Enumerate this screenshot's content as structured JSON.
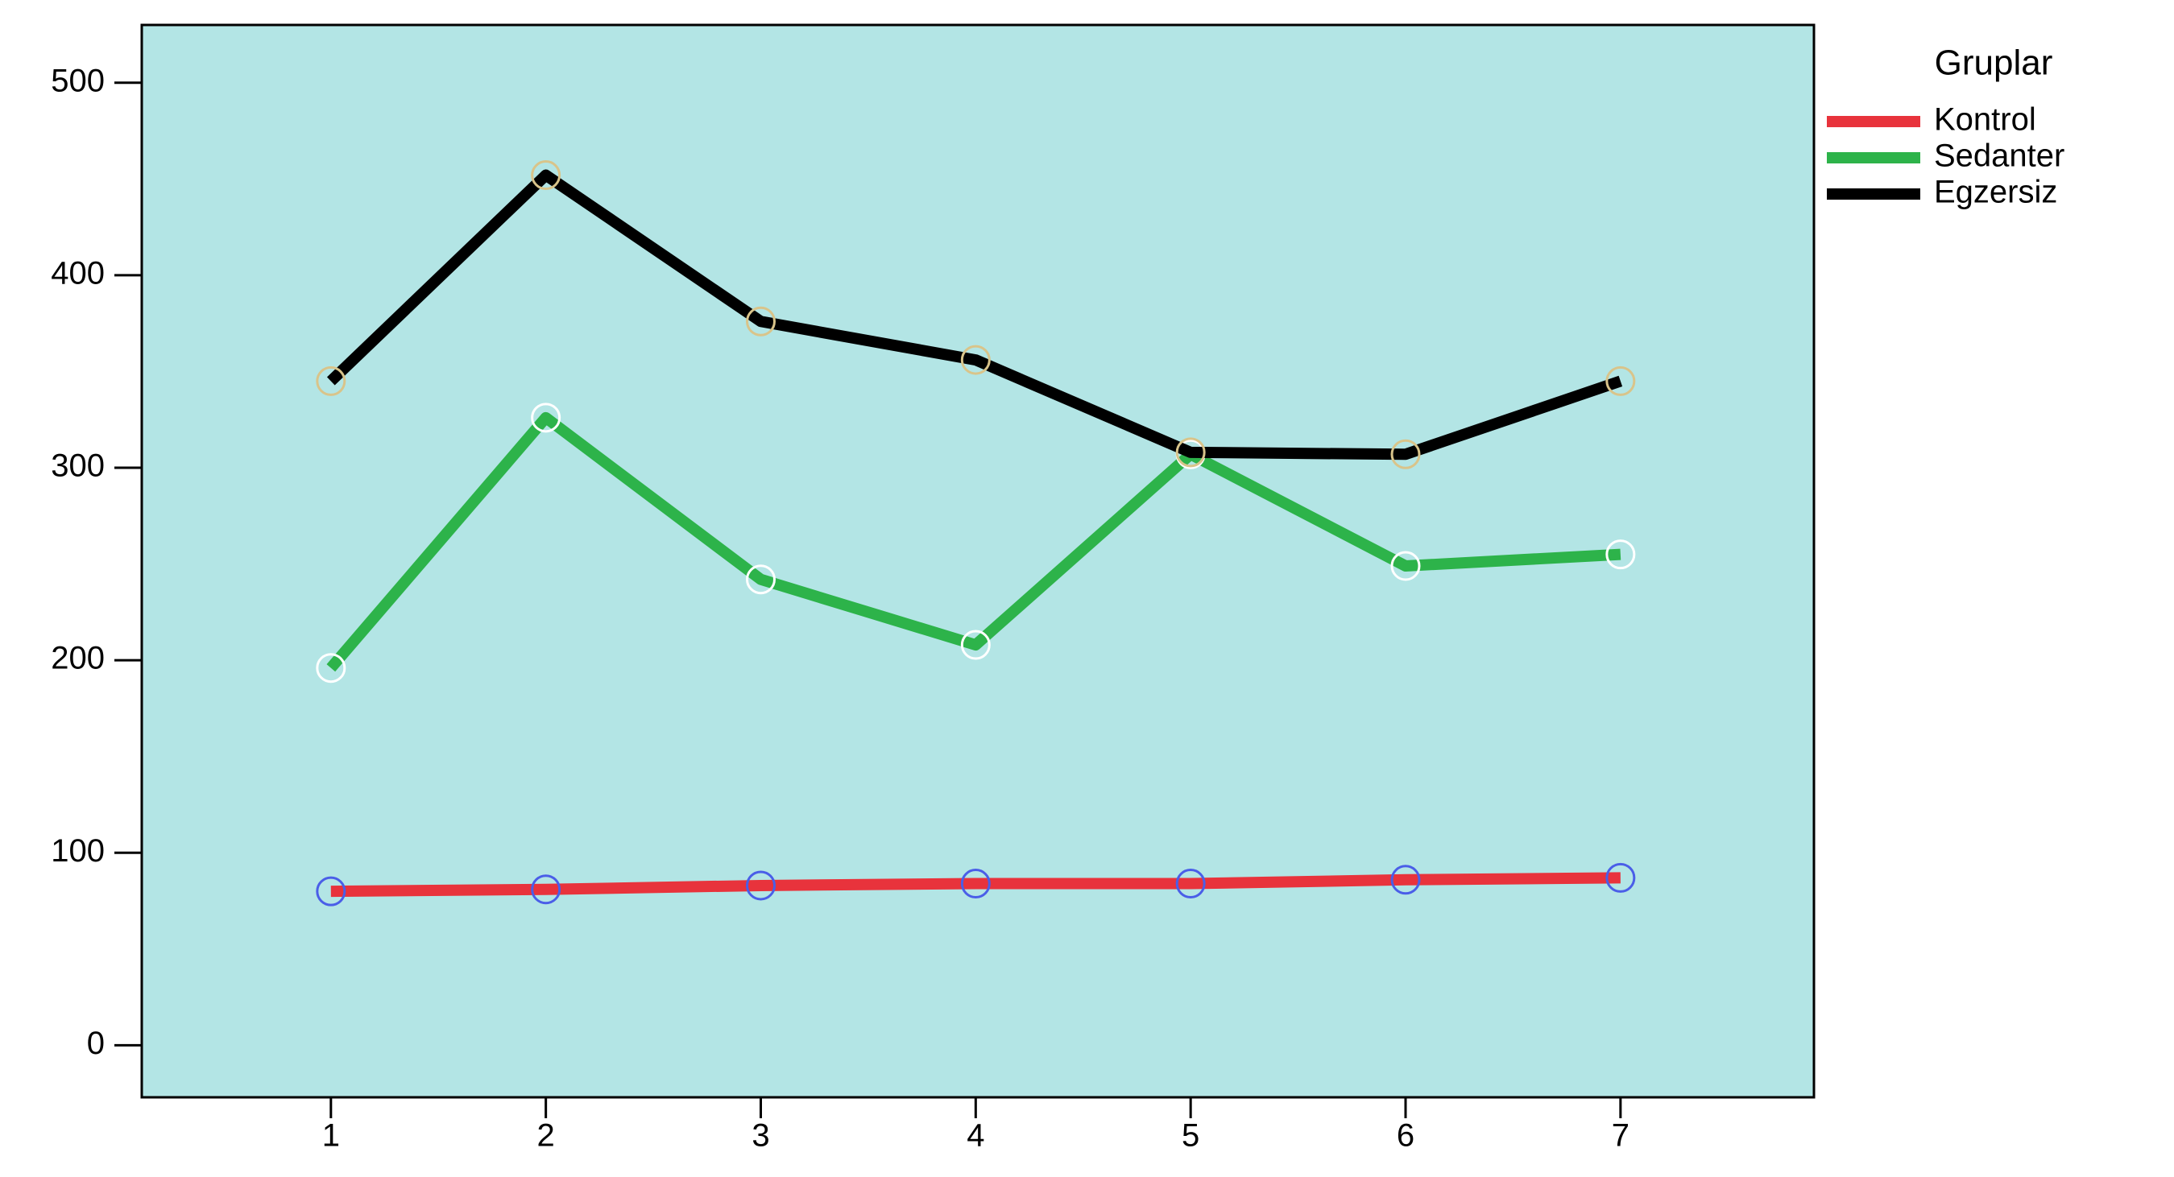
{
  "chart_data": {
    "type": "line",
    "x": [
      1,
      2,
      3,
      4,
      5,
      6,
      7
    ],
    "xlim": [
      0.12,
      7.9
    ],
    "xticks": [
      1,
      2,
      3,
      4,
      5,
      6,
      7
    ],
    "ylim": [
      -27,
      530
    ],
    "yticks": [
      0,
      100,
      200,
      300,
      400,
      500
    ],
    "legend_title": "Gruplar",
    "background": "#b3e5e5",
    "series": [
      {
        "name": "Kontrol",
        "color": "#e8333c",
        "marker_color": "#4a5ee8",
        "values": [
          80,
          81,
          83,
          84,
          84,
          86,
          87
        ]
      },
      {
        "name": "Sedanter",
        "color": "#2db34a",
        "marker_color": "#ffffff",
        "values": [
          196,
          326,
          242,
          208,
          307,
          249,
          255
        ]
      },
      {
        "name": "Egzersiz",
        "color": "#000000",
        "marker_color": "#d9c48a",
        "values": [
          345,
          452,
          376,
          356,
          308,
          307,
          345
        ]
      }
    ]
  }
}
